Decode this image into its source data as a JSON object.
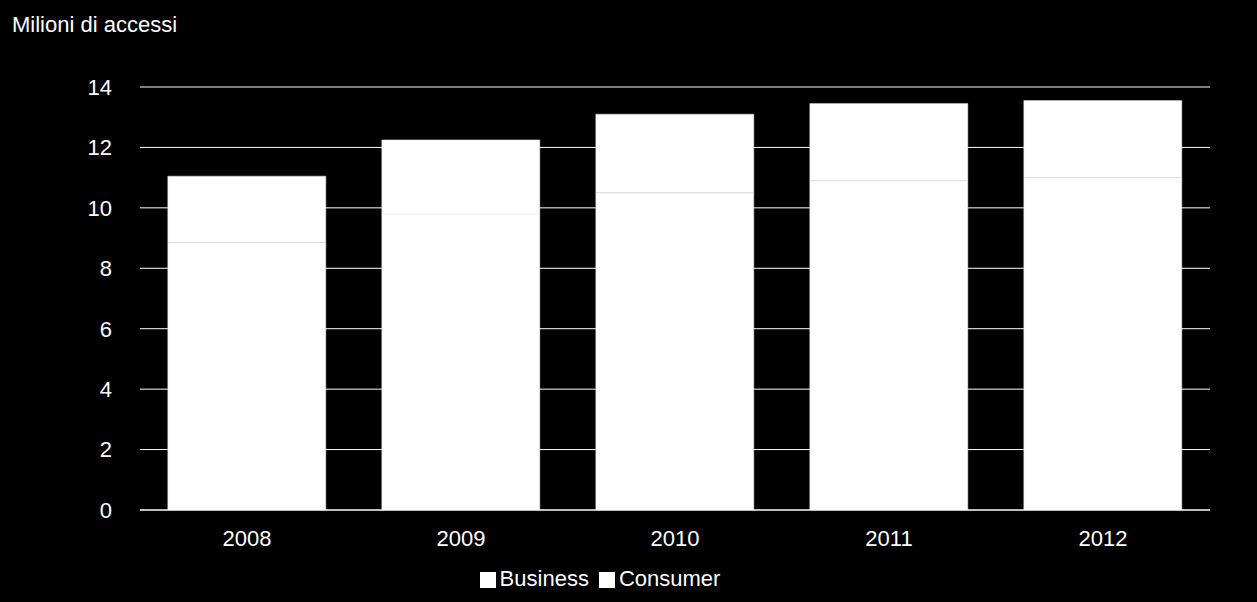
{
  "chart_data": {
    "type": "bar",
    "y_label": "Milioni di accessi",
    "categories": [
      "2008",
      "2009",
      "2010",
      "2011",
      "2012"
    ],
    "series": [
      {
        "name": "Consumer",
        "color": "#ffffff",
        "values": [
          8.85,
          9.8,
          10.5,
          10.9,
          11.0
        ]
      },
      {
        "name": "Business",
        "color": "#ffffff",
        "values": [
          2.2,
          2.45,
          2.6,
          2.55,
          2.55
        ]
      }
    ],
    "ylim": [
      0,
      14
    ],
    "yticks": [
      0,
      2,
      4,
      6,
      8,
      10,
      12,
      14
    ],
    "grid": true,
    "stacked": true,
    "legend": "bottom"
  }
}
